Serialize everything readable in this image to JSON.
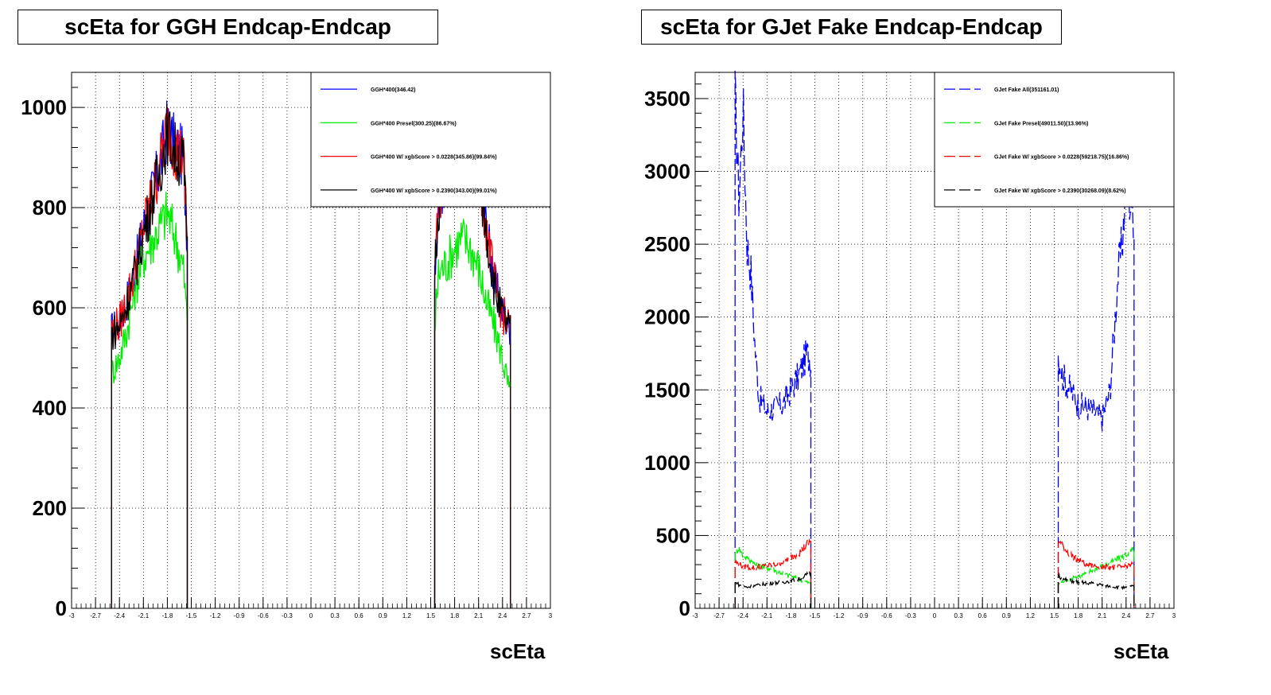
{
  "chart_data": [
    {
      "type": "line",
      "title": "scEta for GGH Endcap-Endcap",
      "xlabel": "scEta",
      "ylabel": "",
      "xlim": [
        -3,
        3
      ],
      "ylim": [
        0,
        1070
      ],
      "x_ticks": [
        "-3",
        "-2.7",
        "-2.4",
        "-2.1",
        "-1.8",
        "-1.5",
        "-1.2",
        "-0.9",
        "-0.6",
        "-0.3",
        "0",
        "0.3",
        "0.6",
        "0.9",
        "1.2",
        "1.5",
        "1.8",
        "2.1",
        "2.4",
        "2.7",
        "3"
      ],
      "y_ticks": [
        0,
        200,
        400,
        600,
        800,
        1000
      ],
      "grid": true,
      "legend_position": "top-right",
      "x": [
        -2.5,
        -2.4,
        -2.3,
        -2.2,
        -2.1,
        -2.0,
        -1.9,
        -1.8,
        -1.7,
        -1.6,
        -1.55,
        1.55,
        1.6,
        1.7,
        1.8,
        1.9,
        2.0,
        2.1,
        2.2,
        2.3,
        2.4,
        2.5
      ],
      "series": [
        {
          "name": "GGH*400(346.42)",
          "color": "#0000ff",
          "style": "solid",
          "values": [
            555,
            570,
            620,
            680,
            760,
            820,
            880,
            960,
            920,
            900,
            740,
            690,
            820,
            870,
            910,
            940,
            930,
            880,
            760,
            650,
            590,
            560
          ]
        },
        {
          "name": "GGH*400 Presel(300.25)(86.67%)",
          "color": "#00ee00",
          "style": "solid",
          "values": [
            470,
            500,
            560,
            640,
            700,
            730,
            760,
            790,
            740,
            680,
            570,
            560,
            670,
            690,
            720,
            740,
            720,
            680,
            610,
            560,
            500,
            420
          ]
        },
        {
          "name": "GGH*400 W/ xgbScore > 0.0228(345.86)(99.84%)",
          "color": "#ff0000",
          "style": "solid",
          "values": [
            555,
            568,
            618,
            680,
            758,
            818,
            880,
            960,
            918,
            900,
            740,
            690,
            818,
            868,
            908,
            938,
            928,
            878,
            758,
            648,
            588,
            558
          ]
        },
        {
          "name": "GGH*400 W/ xgbScore > 0.2390(343.00)(99.01%)",
          "color": "#000000",
          "style": "solid",
          "values": [
            548,
            562,
            612,
            672,
            750,
            810,
            872,
            950,
            910,
            890,
            732,
            682,
            810,
            860,
            900,
            930,
            920,
            870,
            750,
            640,
            582,
            550
          ]
        }
      ]
    },
    {
      "type": "line",
      "title": "scEta for GJet Fake Endcap-Endcap",
      "xlabel": "scEta",
      "ylabel": "",
      "xlim": [
        -3,
        3
      ],
      "ylim": [
        0,
        3680
      ],
      "x_ticks": [
        "-3",
        "-2.7",
        "-2.4",
        "-2.1",
        "-1.8",
        "-1.5",
        "-1.2",
        "-0.9",
        "-0.6",
        "-0.3",
        "0",
        "0.3",
        "0.6",
        "0.9",
        "1.2",
        "1.5",
        "1.8",
        "2.1",
        "2.4",
        "2.7",
        "3"
      ],
      "y_ticks": [
        0,
        500,
        1000,
        1500,
        2000,
        2500,
        3000,
        3500
      ],
      "grid": true,
      "legend_position": "top-right",
      "x": [
        -2.5,
        -2.45,
        -2.4,
        -2.35,
        -2.3,
        -2.25,
        -2.2,
        -2.1,
        -2.0,
        -1.9,
        -1.8,
        -1.7,
        -1.6,
        -1.55,
        1.55,
        1.6,
        1.7,
        1.8,
        1.9,
        2.0,
        2.1,
        2.2,
        2.3,
        2.35,
        2.4,
        2.45,
        2.5
      ],
      "series": [
        {
          "name": "GJet Fake All(351161.01)",
          "color": "#0000ff",
          "style": "dashed",
          "values": [
            3500,
            2800,
            3450,
            2500,
            2300,
            1800,
            1450,
            1350,
            1380,
            1400,
            1500,
            1600,
            1750,
            1700,
            1750,
            1600,
            1500,
            1400,
            1380,
            1350,
            1300,
            1500,
            2300,
            2500,
            2900,
            2800,
            2700
          ]
        },
        {
          "name": "GJet Fake Presel(49011.50)(13.96%)",
          "color": "#00ee00",
          "style": "dashed",
          "values": [
            380,
            420,
            360,
            340,
            330,
            300,
            290,
            280,
            260,
            240,
            220,
            200,
            180,
            170,
            170,
            180,
            200,
            220,
            240,
            270,
            290,
            310,
            340,
            350,
            370,
            390,
            400
          ]
        },
        {
          "name": "GJet Fake W/ xgbScore > 0.0228(59218.75)(16.86%)",
          "color": "#ff0000",
          "style": "dashed",
          "values": [
            320,
            300,
            290,
            285,
            280,
            280,
            285,
            290,
            300,
            320,
            350,
            380,
            440,
            460,
            460,
            430,
            370,
            330,
            300,
            290,
            285,
            280,
            280,
            285,
            290,
            300,
            300
          ]
        },
        {
          "name": "GJet Fake W/ xgbScore > 0.2390(30268.09)(8.62%)",
          "color": "#000000",
          "style": "dashed",
          "values": [
            190,
            160,
            150,
            145,
            150,
            155,
            160,
            170,
            175,
            180,
            190,
            200,
            230,
            240,
            230,
            200,
            190,
            180,
            175,
            170,
            160,
            150,
            145,
            140,
            140,
            150,
            150
          ]
        }
      ]
    }
  ]
}
